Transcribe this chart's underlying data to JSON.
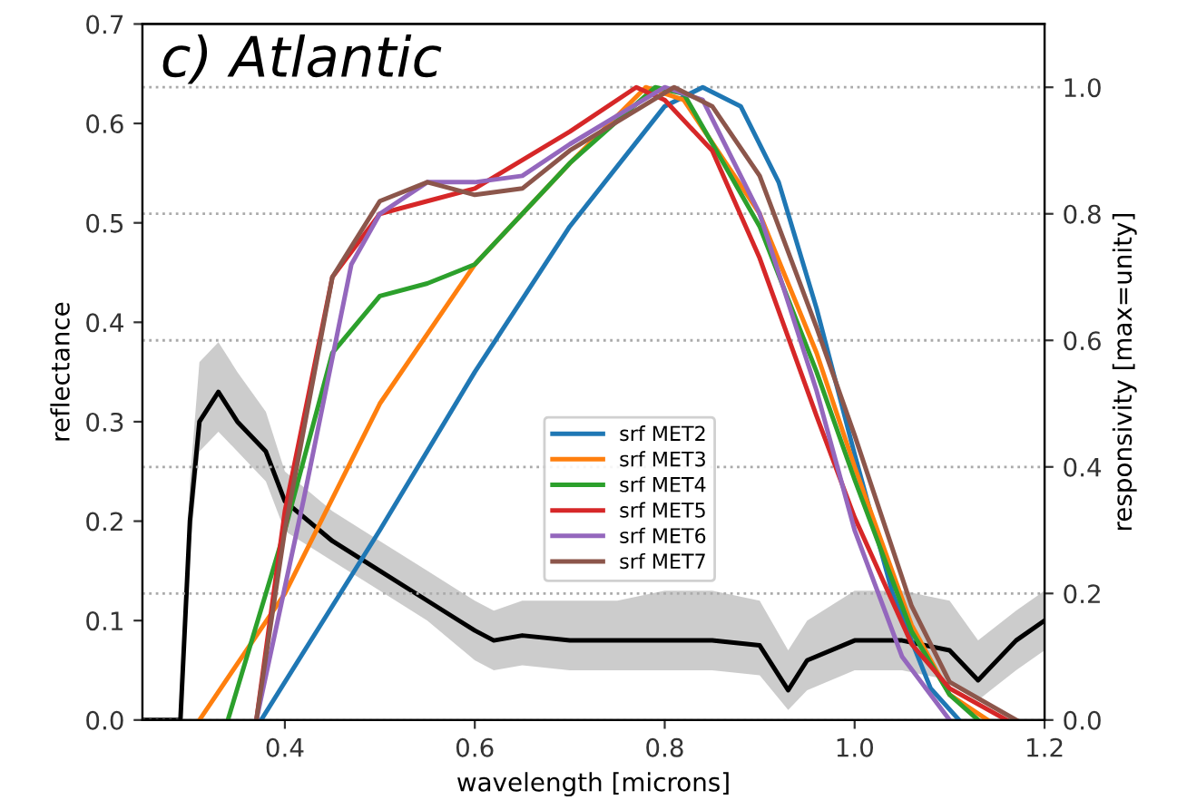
{
  "chart_data": {
    "type": "line",
    "title": "c) Atlantic",
    "xlabel": "wavelength [microns]",
    "ylabel": "reflectance",
    "y2label": "responsivity [max=unity]",
    "xlim": [
      0.25,
      1.2
    ],
    "xticks": [
      0.4,
      0.6,
      0.8,
      {
        "value": 1,
        "label": "1.0"
      },
      1.2
    ],
    "ylim": [
      0.0,
      0.7
    ],
    "yticks": [
      {
        "value": 0,
        "label": "0.0"
      },
      0.1,
      0.2,
      0.3,
      0.4,
      0.5,
      0.6,
      0.7
    ],
    "y2lim": [
      0.0,
      1.1
    ],
    "y2ticks": [
      {
        "value": 0,
        "label": "0.0"
      },
      0.2,
      0.4,
      0.6,
      0.8,
      {
        "value": 1,
        "label": "1.0"
      }
    ],
    "grid": "y2",
    "legend": "bottom",
    "line_style": "solid",
    "marker": "none",
    "series": [
      {
        "color": "#000000",
        "x": [
          0.25,
          0.29,
          0.3,
          0.31,
          0.33,
          0.35,
          0.38,
          0.4,
          0.45,
          0.5,
          0.55,
          0.6,
          0.62,
          0.65,
          0.7,
          0.75,
          0.8,
          0.85,
          0.9,
          0.93,
          0.95,
          1.0,
          1.05,
          1.1,
          1.13,
          1.17,
          1.2
        ],
        "values": [
          0.0,
          0.0,
          0.2,
          0.3,
          0.33,
          0.3,
          0.27,
          0.22,
          0.18,
          0.15,
          0.12,
          0.09,
          0.08,
          0.085,
          0.08,
          0.08,
          0.08,
          0.08,
          0.075,
          0.03,
          0.06,
          0.08,
          0.08,
          0.07,
          0.04,
          0.08,
          0.1
        ],
        "lower": [
          0.0,
          0.0,
          0.17,
          0.27,
          0.29,
          0.27,
          0.24,
          0.19,
          0.16,
          0.13,
          0.1,
          0.06,
          0.05,
          0.055,
          0.05,
          0.05,
          0.05,
          0.05,
          0.045,
          0.01,
          0.03,
          0.05,
          0.05,
          0.04,
          0.02,
          0.05,
          0.07
        ],
        "upper": [
          0.0,
          0.0,
          0.24,
          0.36,
          0.38,
          0.35,
          0.31,
          0.25,
          0.21,
          0.18,
          0.15,
          0.12,
          0.11,
          0.12,
          0.12,
          0.12,
          0.13,
          0.13,
          0.12,
          0.07,
          0.1,
          0.13,
          0.13,
          0.12,
          0.08,
          0.11,
          0.13
        ]
      },
      {
        "name": "srf MET2",
        "color": "#1f77b4",
        "axis": "y2",
        "x": [
          0.375,
          0.5,
          0.6,
          0.7,
          0.8,
          0.84,
          0.88,
          0.92,
          0.96,
          1.0,
          1.04,
          1.08,
          1.11
        ],
        "values": [
          0.0,
          0.3,
          0.55,
          0.78,
          0.97,
          1.0,
          0.97,
          0.85,
          0.65,
          0.42,
          0.2,
          0.05,
          0.0
        ]
      },
      {
        "name": "srf MET3",
        "color": "#ff7f0e",
        "axis": "y2",
        "x": [
          0.31,
          0.4,
          0.5,
          0.6,
          0.7,
          0.78,
          0.82,
          0.9,
          0.96,
          1.0,
          1.06,
          1.1,
          1.14
        ],
        "values": [
          0.0,
          0.2,
          0.5,
          0.72,
          0.88,
          1.0,
          0.98,
          0.8,
          0.58,
          0.4,
          0.15,
          0.04,
          0.0
        ]
      },
      {
        "name": "srf MET4",
        "color": "#2ca02c",
        "axis": "y2",
        "x": [
          0.34,
          0.4,
          0.45,
          0.5,
          0.55,
          0.6,
          0.65,
          0.7,
          0.79,
          0.82,
          0.9,
          0.96,
          1.0,
          1.06,
          1.1,
          1.13
        ],
        "values": [
          0.0,
          0.3,
          0.58,
          0.67,
          0.69,
          0.72,
          0.8,
          0.88,
          1.0,
          0.99,
          0.78,
          0.55,
          0.38,
          0.14,
          0.04,
          0.0
        ]
      },
      {
        "name": "srf MET5",
        "color": "#d62728",
        "axis": "y2",
        "x": [
          0.37,
          0.4,
          0.45,
          0.5,
          0.55,
          0.6,
          0.7,
          0.77,
          0.8,
          0.85,
          0.9,
          0.96,
          1.0,
          1.06,
          1.1,
          1.16
        ],
        "values": [
          0.0,
          0.33,
          0.7,
          0.8,
          0.82,
          0.84,
          0.93,
          1.0,
          0.98,
          0.9,
          0.73,
          0.48,
          0.32,
          0.12,
          0.05,
          0.0
        ]
      },
      {
        "name": "srf MET6",
        "color": "#9467bd",
        "axis": "y2",
        "x": [
          0.37,
          0.42,
          0.47,
          0.5,
          0.55,
          0.6,
          0.65,
          0.7,
          0.8,
          0.84,
          0.9,
          0.96,
          1.0,
          1.05,
          1.1
        ],
        "values": [
          0.0,
          0.35,
          0.72,
          0.8,
          0.85,
          0.85,
          0.86,
          0.91,
          1.0,
          0.98,
          0.8,
          0.52,
          0.3,
          0.1,
          0.0
        ]
      },
      {
        "name": "srf MET7",
        "color": "#8c564b",
        "axis": "y2",
        "x": [
          0.37,
          0.4,
          0.45,
          0.5,
          0.55,
          0.6,
          0.65,
          0.7,
          0.81,
          0.85,
          0.9,
          0.96,
          1.0,
          1.06,
          1.1,
          1.17
        ],
        "values": [
          0.0,
          0.3,
          0.7,
          0.82,
          0.85,
          0.83,
          0.84,
          0.9,
          1.0,
          0.97,
          0.86,
          0.62,
          0.45,
          0.18,
          0.06,
          0.0
        ]
      }
    ]
  }
}
